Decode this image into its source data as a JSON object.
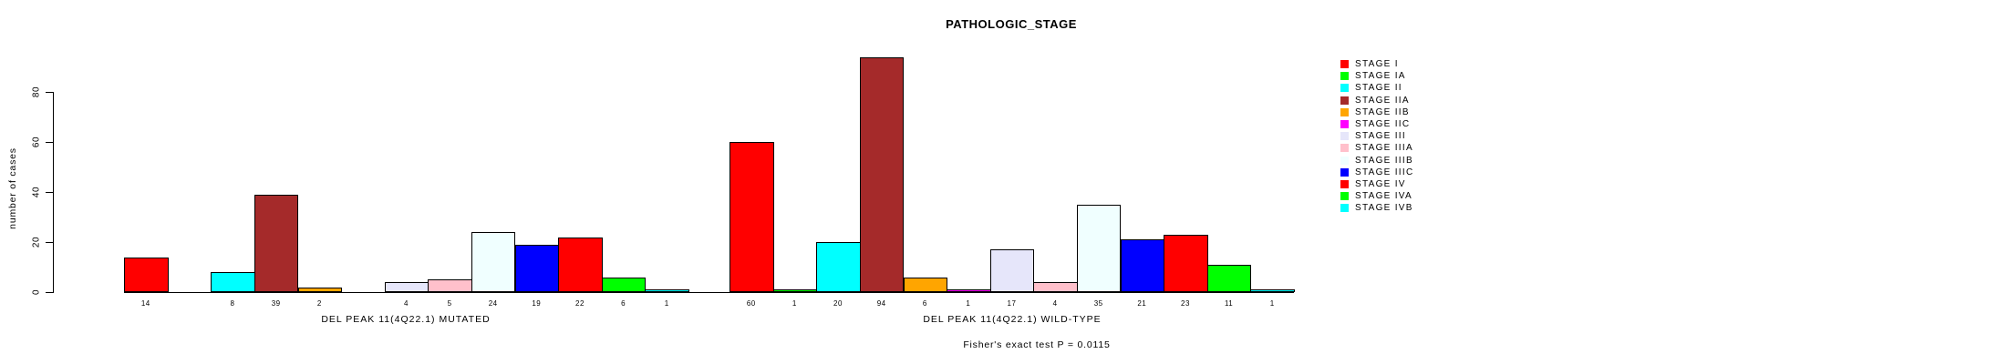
{
  "chart_data": {
    "type": "bar",
    "title": "PATHOLOGIC_STAGE",
    "ylabel": "number of cases",
    "xlabel": "",
    "ylim": [
      0,
      95
    ],
    "yticks": [
      0,
      20,
      40,
      60,
      80
    ],
    "grid": false,
    "legend_position": "right",
    "bar_value_labels": "value shown under each bar; zero-value stages have no bar and no label",
    "categories": [
      "STAGE I",
      "STAGE IA",
      "STAGE II",
      "STAGE IIA",
      "STAGE IIB",
      "STAGE IIC",
      "STAGE III",
      "STAGE IIIA",
      "STAGE IIIB",
      "STAGE IIIC",
      "STAGE IV",
      "STAGE IVA",
      "STAGE IVB"
    ],
    "colors": [
      "#FF0000",
      "#00FF00",
      "#00FFFF",
      "#A52A2A",
      "#FFA500",
      "#FF00FF",
      "#E6E6FA",
      "#FFC0CB",
      "#F0FFFF",
      "#0000FF",
      "#FF0000",
      "#00FF00",
      "#00FFFF"
    ],
    "series": [
      {
        "name": "DEL PEAK 11(4Q22.1) MUTATED",
        "values": [
          14,
          0,
          8,
          39,
          2,
          0,
          4,
          5,
          24,
          19,
          22,
          6,
          1
        ]
      },
      {
        "name": "DEL PEAK 11(4Q22.1) WILD-TYPE",
        "values": [
          60,
          1,
          20,
          94,
          6,
          1,
          17,
          4,
          35,
          21,
          23,
          11,
          1
        ]
      }
    ],
    "annotation": "Fisher's exact test P = 0.0115"
  }
}
